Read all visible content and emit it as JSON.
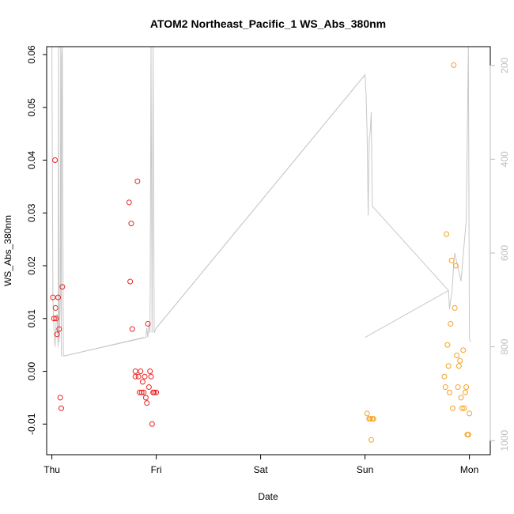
{
  "chart_data": {
    "type": "scatter",
    "title": "ATOM2 Northeast_Pacific_1 WS_Abs_380nm",
    "xlabel": "Date",
    "ylabel": "WS_Abs_380nm",
    "x_unit": "days from Thursday 00:00",
    "xlim": [
      -0.05,
      4.2
    ],
    "ylim": [
      -0.0158,
      0.0615
    ],
    "x_tick_values": [
      0,
      1,
      2,
      3,
      4
    ],
    "x_tick_labels": [
      "Thu",
      "Fri",
      "Sat",
      "Sun",
      "Mon"
    ],
    "y_tick_values": [
      -0.01,
      0.0,
      0.01,
      0.02,
      0.03,
      0.04,
      0.05,
      0.06
    ],
    "y_tick_labels": [
      "-0.01",
      "0.00",
      "0.01",
      "0.02",
      "0.03",
      "0.04",
      "0.05",
      "0.06"
    ],
    "right_axis": {
      "ylim": [
        1030,
        160
      ],
      "tick_values": [
        200,
        400,
        600,
        800,
        1000
      ],
      "tick_labels": [
        "200",
        "400",
        "600",
        "800",
        "1000"
      ],
      "color": "#bdbdbd"
    },
    "series": [
      {
        "color": "#ee2222",
        "x": [
          0.01,
          0.02,
          0.03,
          0.035,
          0.04,
          0.05,
          0.06,
          0.07,
          0.08,
          0.09,
          0.1,
          0.74,
          0.75,
          0.76,
          0.77,
          0.8,
          0.8,
          0.82,
          0.83,
          0.84,
          0.85,
          0.86,
          0.87,
          0.88,
          0.89,
          0.9,
          0.91,
          0.92,
          0.93,
          0.94,
          0.95,
          0.96,
          0.97,
          0.98,
          1.0
        ],
        "y": [
          0.014,
          0.01,
          0.04,
          0.012,
          0.01,
          0.007,
          0.014,
          0.008,
          -0.005,
          -0.007,
          0.016,
          0.032,
          0.017,
          0.028,
          0.008,
          -0.001,
          0.0,
          0.036,
          -0.001,
          -0.004,
          0.0,
          -0.004,
          -0.002,
          -0.004,
          -0.001,
          -0.005,
          -0.006,
          0.009,
          -0.003,
          0.0,
          -0.001,
          -0.01,
          -0.004,
          -0.004,
          -0.004
        ]
      },
      {
        "color": "#f5a020",
        "x": [
          3.02,
          3.04,
          3.05,
          3.06,
          3.07,
          3.08,
          3.76,
          3.77,
          3.78,
          3.79,
          3.8,
          3.81,
          3.82,
          3.83,
          3.84,
          3.85,
          3.86,
          3.87,
          3.88,
          3.89,
          3.9,
          3.91,
          3.92,
          3.93,
          3.94,
          3.95,
          3.96,
          3.97,
          3.98,
          3.99,
          4.0
        ],
        "y": [
          -0.008,
          -0.009,
          -0.009,
          -0.013,
          -0.009,
          -0.009,
          -0.001,
          -0.003,
          0.026,
          0.005,
          0.001,
          -0.004,
          0.009,
          0.021,
          -0.007,
          0.058,
          0.012,
          0.02,
          0.003,
          -0.003,
          0.001,
          0.002,
          -0.005,
          -0.007,
          0.004,
          -0.007,
          -0.004,
          -0.003,
          -0.012,
          -0.012,
          -0.008
        ]
      }
    ],
    "altitude_trace": {
      "color": "#c8c8c8",
      "x": [
        0.0,
        0.01,
        0.02,
        0.03,
        0.04,
        0.05,
        0.06,
        0.065,
        0.07,
        0.075,
        0.08,
        0.085,
        0.09,
        0.095,
        0.1,
        0.11,
        0.9,
        0.91,
        0.92,
        0.93,
        0.94,
        0.95,
        0.96,
        0.97,
        0.98,
        1.0,
        3.0,
        3.01,
        3.02,
        3.03,
        3.04,
        3.05,
        3.06,
        3.07,
        3.8,
        3.81,
        3.82,
        3.83,
        3.84,
        3.85,
        3.86,
        3.87,
        3.9,
        3.92,
        3.95,
        3.97,
        3.99,
        4.0,
        4.01
      ],
      "y": [
        160,
        700,
        760,
        800,
        750,
        730,
        800,
        160,
        790,
        750,
        700,
        160,
        820,
        180,
        160,
        820,
        780,
        760,
        780,
        750,
        770,
        160,
        770,
        160,
        770,
        760,
        220,
        260,
        340,
        520,
        360,
        340,
        300,
        500,
        680,
        720,
        700,
        690,
        660,
        620,
        600,
        610,
        640,
        660,
        580,
        530,
        160,
        780,
        790
      ],
      "connectors": [
        [
          0.11,
          820,
          0.88,
          780
        ],
        [
          1.0,
          760,
          3.0,
          220
        ],
        [
          3.0,
          780,
          3.8,
          680
        ]
      ]
    }
  }
}
